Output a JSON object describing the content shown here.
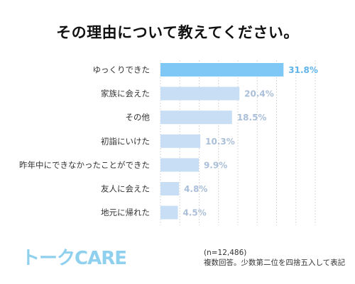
{
  "title": "その理由について教えてください。",
  "colors": {
    "highlight_bar": "#7fc7f4",
    "bar": "#c7def5",
    "highlight_value": "#5fb4ec",
    "value": "#aabfd9",
    "grid": "#d8d8d8"
  },
  "chart_data": {
    "type": "bar",
    "orientation": "horizontal",
    "categories": [
      "ゆっくりできた",
      "家族に会えた",
      "その他",
      "初詣にいけた",
      "昨年中にできなかったことができた",
      "友人に会えた",
      "地元に帰れた"
    ],
    "values": [
      31.8,
      20.4,
      18.5,
      10.3,
      9.9,
      4.8,
      4.5
    ],
    "value_labels": [
      "31.8%",
      "20.4%",
      "18.5%",
      "10.3%",
      "9.9%",
      "4.8%",
      "4.5%"
    ],
    "unit": "%",
    "xlim": [
      0,
      40
    ],
    "grid": true,
    "highlight_index": 0
  },
  "footer": {
    "logo": "トークCARE",
    "sample_size": "(n=12,486)",
    "notes": "複数回答。少数第二位を四捨五入して表記"
  }
}
